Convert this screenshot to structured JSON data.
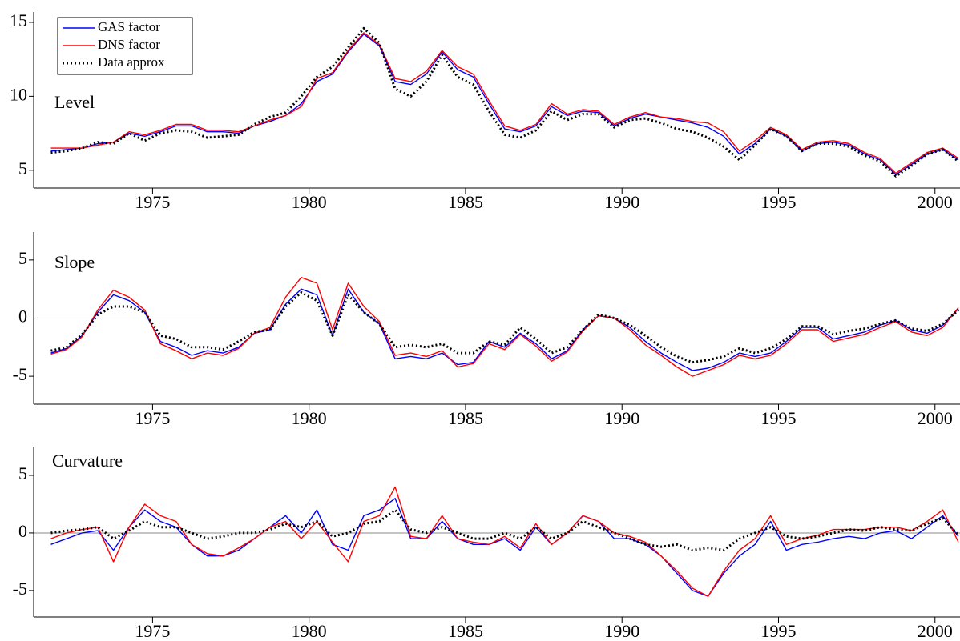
{
  "chart_data": [
    {
      "type": "line",
      "title": "Level",
      "legend": "upper left",
      "zero_line": false,
      "x": [
        1971.75,
        1972.25,
        1972.75,
        1973.25,
        1973.75,
        1974.25,
        1974.75,
        1975.25,
        1975.75,
        1976.25,
        1976.75,
        1977.25,
        1977.75,
        1978.25,
        1978.75,
        1979.25,
        1979.75,
        1980.25,
        1980.75,
        1981.25,
        1981.75,
        1982.25,
        1982.75,
        1983.25,
        1983.75,
        1984.25,
        1984.75,
        1985.25,
        1985.75,
        1986.25,
        1986.75,
        1987.25,
        1987.75,
        1988.25,
        1988.75,
        1989.25,
        1989.75,
        1990.25,
        1990.75,
        1991.25,
        1991.75,
        1992.25,
        1992.75,
        1993.25,
        1993.75,
        1994.25,
        1994.75,
        1995.25,
        1995.75,
        1996.25,
        1996.75,
        1997.25,
        1997.75,
        1998.25,
        1998.75,
        1999.25,
        1999.75,
        2000.25,
        2000.75
      ],
      "xlim": [
        1971.2,
        2000.8
      ],
      "xticks": [
        1975,
        1980,
        1985,
        1990,
        1995,
        2000
      ],
      "ylim": [
        3.8,
        15.7
      ],
      "yticks": [
        5,
        10,
        15
      ],
      "series": [
        {
          "name": "GAS factor",
          "color": "#0000ff",
          "style": "solid",
          "values": [
            6.3,
            6.4,
            6.5,
            6.8,
            6.9,
            7.5,
            7.3,
            7.6,
            8.0,
            8.0,
            7.6,
            7.6,
            7.5,
            8.0,
            8.3,
            8.7,
            9.5,
            11.0,
            11.5,
            13.0,
            14.2,
            13.4,
            11.0,
            10.8,
            11.5,
            13.0,
            11.8,
            11.3,
            9.5,
            7.8,
            7.6,
            8.0,
            9.3,
            8.7,
            9.0,
            8.9,
            8.0,
            8.5,
            8.8,
            8.6,
            8.4,
            8.2,
            7.9,
            7.3,
            6.1,
            6.8,
            7.8,
            7.3,
            6.3,
            6.8,
            6.9,
            6.7,
            6.1,
            5.7,
            4.7,
            5.4,
            6.1,
            6.4,
            5.7
          ]
        },
        {
          "name": "DNS factor",
          "color": "#ff0000",
          "style": "solid",
          "values": [
            6.5,
            6.5,
            6.5,
            6.7,
            6.9,
            7.6,
            7.4,
            7.7,
            8.1,
            8.1,
            7.7,
            7.7,
            7.6,
            8.0,
            8.4,
            8.7,
            9.3,
            11.2,
            11.6,
            13.1,
            14.3,
            13.5,
            11.2,
            11.0,
            11.7,
            13.1,
            12.0,
            11.5,
            9.7,
            8.0,
            7.7,
            8.1,
            9.5,
            8.8,
            9.1,
            9.0,
            8.1,
            8.6,
            8.9,
            8.6,
            8.5,
            8.3,
            8.2,
            7.6,
            6.3,
            7.0,
            7.9,
            7.4,
            6.4,
            6.9,
            7.0,
            6.8,
            6.2,
            5.8,
            4.8,
            5.5,
            6.2,
            6.5,
            5.8
          ]
        },
        {
          "name": "Data approx",
          "color": "#000000",
          "style": "dotted",
          "values": [
            6.2,
            6.3,
            6.5,
            6.9,
            6.8,
            7.5,
            7.0,
            7.5,
            7.7,
            7.6,
            7.2,
            7.3,
            7.4,
            8.1,
            8.6,
            8.9,
            10.0,
            11.3,
            12.0,
            13.3,
            14.6,
            13.6,
            10.5,
            10.0,
            11.0,
            12.8,
            11.3,
            10.8,
            9.0,
            7.4,
            7.2,
            7.7,
            9.0,
            8.4,
            8.8,
            8.8,
            7.9,
            8.4,
            8.5,
            8.2,
            7.8,
            7.6,
            7.2,
            6.6,
            5.7,
            6.7,
            7.8,
            7.3,
            6.3,
            6.8,
            6.8,
            6.6,
            6.0,
            5.6,
            4.6,
            5.3,
            6.1,
            6.4,
            5.6
          ]
        }
      ]
    },
    {
      "type": "line",
      "title": "Slope",
      "zero_line": true,
      "x": [
        1971.75,
        1972.25,
        1972.75,
        1973.25,
        1973.75,
        1974.25,
        1974.75,
        1975.25,
        1975.75,
        1976.25,
        1976.75,
        1977.25,
        1977.75,
        1978.25,
        1978.75,
        1979.25,
        1979.75,
        1980.25,
        1980.75,
        1981.25,
        1981.75,
        1982.25,
        1982.75,
        1983.25,
        1983.75,
        1984.25,
        1984.75,
        1985.25,
        1985.75,
        1986.25,
        1986.75,
        1987.25,
        1987.75,
        1988.25,
        1988.75,
        1989.25,
        1989.75,
        1990.25,
        1990.75,
        1991.25,
        1991.75,
        1992.25,
        1992.75,
        1993.25,
        1993.75,
        1994.25,
        1994.75,
        1995.25,
        1995.75,
        1996.25,
        1996.75,
        1997.25,
        1997.75,
        1998.25,
        1998.75,
        1999.25,
        1999.75,
        2000.25,
        2000.75
      ],
      "xlim": [
        1971.2,
        2000.8
      ],
      "xticks": [
        1975,
        1980,
        1985,
        1990,
        1995,
        2000
      ],
      "ylim": [
        -7.4,
        7.4
      ],
      "yticks": [
        -5,
        0,
        5
      ],
      "series": [
        {
          "color": "#0000ff",
          "style": "solid",
          "values": [
            -3.0,
            -2.6,
            -1.5,
            0.5,
            2.0,
            1.5,
            0.5,
            -2.0,
            -2.5,
            -3.2,
            -2.8,
            -3.0,
            -2.5,
            -1.3,
            -1.0,
            1.2,
            2.5,
            2.0,
            -1.5,
            2.5,
            0.5,
            -0.5,
            -3.5,
            -3.3,
            -3.5,
            -3.0,
            -4.0,
            -3.8,
            -2.0,
            -2.5,
            -1.3,
            -2.2,
            -3.5,
            -2.8,
            -1.0,
            0.2,
            0.0,
            -0.8,
            -2.0,
            -3.0,
            -3.8,
            -4.5,
            -4.3,
            -3.8,
            -3.0,
            -3.3,
            -3.0,
            -2.0,
            -0.8,
            -0.8,
            -1.8,
            -1.5,
            -1.2,
            -0.6,
            -0.2,
            -1.0,
            -1.3,
            -0.6,
            0.8
          ]
        },
        {
          "color": "#ff0000",
          "style": "solid",
          "values": [
            -3.1,
            -2.7,
            -1.6,
            0.7,
            2.4,
            1.8,
            0.7,
            -2.2,
            -2.8,
            -3.5,
            -3.0,
            -3.2,
            -2.6,
            -1.3,
            -0.8,
            1.8,
            3.5,
            3.0,
            -1.0,
            3.0,
            1.0,
            -0.3,
            -3.2,
            -3.0,
            -3.3,
            -2.8,
            -4.2,
            -3.9,
            -2.2,
            -2.7,
            -1.4,
            -2.4,
            -3.7,
            -2.9,
            -1.1,
            0.2,
            0.0,
            -1.0,
            -2.3,
            -3.2,
            -4.2,
            -5.0,
            -4.5,
            -4.0,
            -3.2,
            -3.5,
            -3.2,
            -2.2,
            -1.0,
            -1.0,
            -2.0,
            -1.7,
            -1.4,
            -0.8,
            -0.3,
            -1.2,
            -1.5,
            -0.8,
            0.9
          ]
        },
        {
          "color": "#000000",
          "style": "dotted",
          "values": [
            -2.8,
            -2.5,
            -1.4,
            0.3,
            1.0,
            1.0,
            0.5,
            -1.5,
            -1.8,
            -2.5,
            -2.5,
            -2.7,
            -2.0,
            -1.2,
            -1.0,
            1.0,
            2.2,
            1.5,
            -1.5,
            2.0,
            0.5,
            -0.5,
            -2.5,
            -2.3,
            -2.5,
            -2.2,
            -3.0,
            -3.0,
            -2.0,
            -2.3,
            -0.8,
            -1.8,
            -3.0,
            -2.5,
            -1.0,
            0.3,
            0.0,
            -0.6,
            -1.5,
            -2.5,
            -3.3,
            -3.8,
            -3.6,
            -3.3,
            -2.6,
            -3.0,
            -2.6,
            -1.8,
            -0.7,
            -0.7,
            -1.4,
            -1.1,
            -0.9,
            -0.5,
            -0.2,
            -0.9,
            -1.1,
            -0.5,
            0.7
          ]
        }
      ]
    },
    {
      "type": "line",
      "title": "Curvature",
      "zero_line": true,
      "x": [
        1971.75,
        1972.25,
        1972.75,
        1973.25,
        1973.75,
        1974.25,
        1974.75,
        1975.25,
        1975.75,
        1976.25,
        1976.75,
        1977.25,
        1977.75,
        1978.25,
        1978.75,
        1979.25,
        1979.75,
        1980.25,
        1980.75,
        1981.25,
        1981.75,
        1982.25,
        1982.75,
        1983.25,
        1983.75,
        1984.25,
        1984.75,
        1985.25,
        1985.75,
        1986.25,
        1986.75,
        1987.25,
        1987.75,
        1988.25,
        1988.75,
        1989.25,
        1989.75,
        1990.25,
        1990.75,
        1991.25,
        1991.75,
        1992.25,
        1992.75,
        1993.25,
        1993.75,
        1994.25,
        1994.75,
        1995.25,
        1995.75,
        1996.25,
        1996.75,
        1997.25,
        1997.75,
        1998.25,
        1998.75,
        1999.25,
        1999.75,
        2000.25,
        2000.75
      ],
      "xlim": [
        1971.2,
        2000.8
      ],
      "xticks": [
        1975,
        1980,
        1985,
        1990,
        1995,
        2000
      ],
      "ylim": [
        -7.3,
        7.5
      ],
      "yticks": [
        -5,
        0,
        5
      ],
      "series": [
        {
          "color": "#0000ff",
          "style": "solid",
          "values": [
            -1.0,
            -0.5,
            0.0,
            0.2,
            -1.5,
            0.5,
            2.0,
            1.0,
            0.5,
            -1.0,
            -2.0,
            -2.0,
            -1.5,
            -0.5,
            0.5,
            1.5,
            0.0,
            2.0,
            -1.0,
            -1.5,
            1.5,
            2.0,
            3.0,
            -0.5,
            -0.5,
            1.0,
            -0.5,
            -1.0,
            -1.0,
            -0.5,
            -1.5,
            0.5,
            -1.0,
            0.0,
            1.5,
            1.0,
            -0.5,
            -0.5,
            -1.0,
            -2.0,
            -3.5,
            -5.0,
            -5.5,
            -3.5,
            -2.0,
            -1.0,
            1.0,
            -1.5,
            -1.0,
            -0.8,
            -0.5,
            -0.3,
            -0.5,
            0.0,
            0.2,
            -0.5,
            0.5,
            1.5,
            -0.3
          ]
        },
        {
          "color": "#ff0000",
          "style": "solid",
          "values": [
            -0.5,
            0.0,
            0.3,
            0.5,
            -2.5,
            0.5,
            2.5,
            1.5,
            1.0,
            -1.0,
            -1.8,
            -2.0,
            -1.3,
            -0.5,
            0.5,
            1.0,
            -0.5,
            1.0,
            -0.8,
            -2.5,
            1.0,
            1.5,
            4.0,
            -0.3,
            -0.5,
            1.5,
            -0.5,
            -0.8,
            -1.0,
            -0.3,
            -1.3,
            0.8,
            -1.0,
            0.0,
            1.5,
            1.0,
            0.0,
            -0.3,
            -0.8,
            -2.0,
            -3.3,
            -4.8,
            -5.5,
            -3.3,
            -1.5,
            -0.5,
            1.5,
            -1.0,
            -0.5,
            -0.2,
            0.3,
            0.3,
            0.3,
            0.5,
            0.5,
            0.2,
            1.0,
            2.0,
            -0.8
          ]
        },
        {
          "color": "#000000",
          "style": "dotted",
          "values": [
            0.0,
            0.2,
            0.3,
            0.5,
            -0.5,
            0.2,
            1.0,
            0.5,
            0.5,
            0.0,
            -0.5,
            -0.3,
            0.0,
            0.0,
            0.3,
            0.8,
            0.5,
            1.0,
            -0.3,
            0.0,
            0.8,
            1.0,
            2.0,
            0.3,
            0.0,
            0.5,
            0.0,
            -0.5,
            -0.5,
            0.0,
            -0.5,
            0.5,
            -0.5,
            0.0,
            1.0,
            0.5,
            0.0,
            -0.5,
            -1.0,
            -1.2,
            -1.0,
            -1.5,
            -1.3,
            -1.5,
            -0.5,
            0.0,
            0.5,
            -0.3,
            -0.5,
            -0.3,
            0.0,
            0.3,
            0.2,
            0.5,
            0.3,
            0.2,
            0.8,
            1.3,
            -0.2
          ]
        }
      ]
    }
  ]
}
